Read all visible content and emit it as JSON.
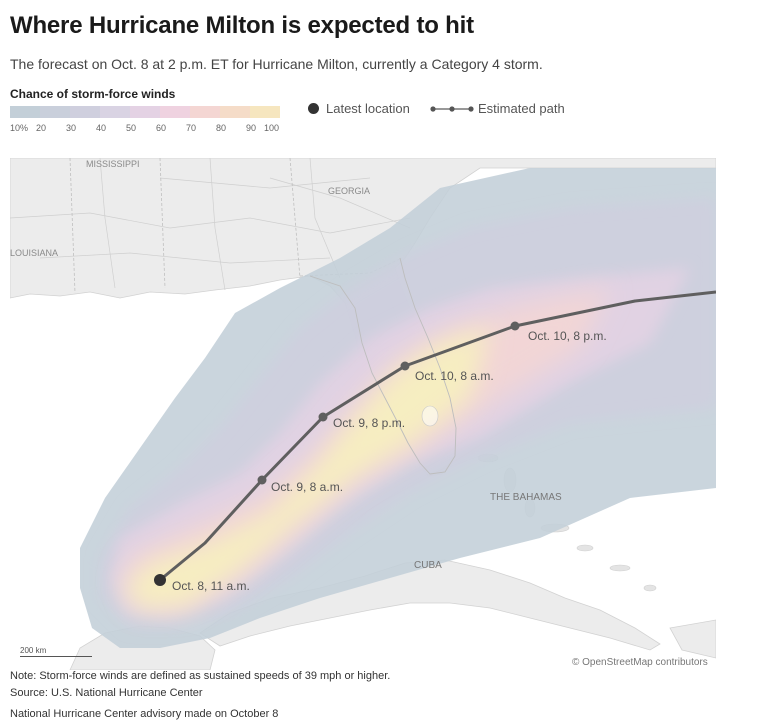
{
  "title": "Where Hurricane Milton is expected to hit",
  "subtitle": "The forecast on Oct. 8 at 2 p.m. ET for Hurricane Milton, currently a Category 4 storm.",
  "legend": {
    "title": "Chance of storm-force winds",
    "ticks": [
      "10%",
      "20",
      "30",
      "40",
      "50",
      "60",
      "70",
      "80",
      "90",
      "100"
    ],
    "colors": [
      "#c3cfd8",
      "#c9cfdb",
      "#cfcfde",
      "#d9d3e3",
      "#e4d2e4",
      "#efd2e0",
      "#f4d6d3",
      "#f5dcc8",
      "#f6e6bf",
      "#f7efc0"
    ],
    "latest_location": "Latest location",
    "estimated_path": "Estimated path"
  },
  "map": {
    "labels": {
      "mississippi": "MISSISSIPPI",
      "georgia": "GEORGIA",
      "louisiana": "LOUISIANA",
      "bahamas": "THE BAHAMAS",
      "cuba": "CUBA"
    },
    "path_points": [
      {
        "label": "Oct. 8, 11 a.m."
      },
      {
        "label": "Oct. 9, 8 a.m."
      },
      {
        "label": "Oct. 9, 8 p.m."
      },
      {
        "label": "Oct. 10, 8 a.m."
      },
      {
        "label": "Oct. 10, 8 p.m."
      }
    ],
    "scale": "200 km",
    "attribution": "© OpenStreetMap contributors"
  },
  "notes": {
    "definition": "Note: Storm-force winds are defined as sustained speeds of 39 mph or higher.",
    "source": "Source: U.S. National Hurricane Center",
    "advisory": "National Hurricane Center advisory made on October 8"
  }
}
